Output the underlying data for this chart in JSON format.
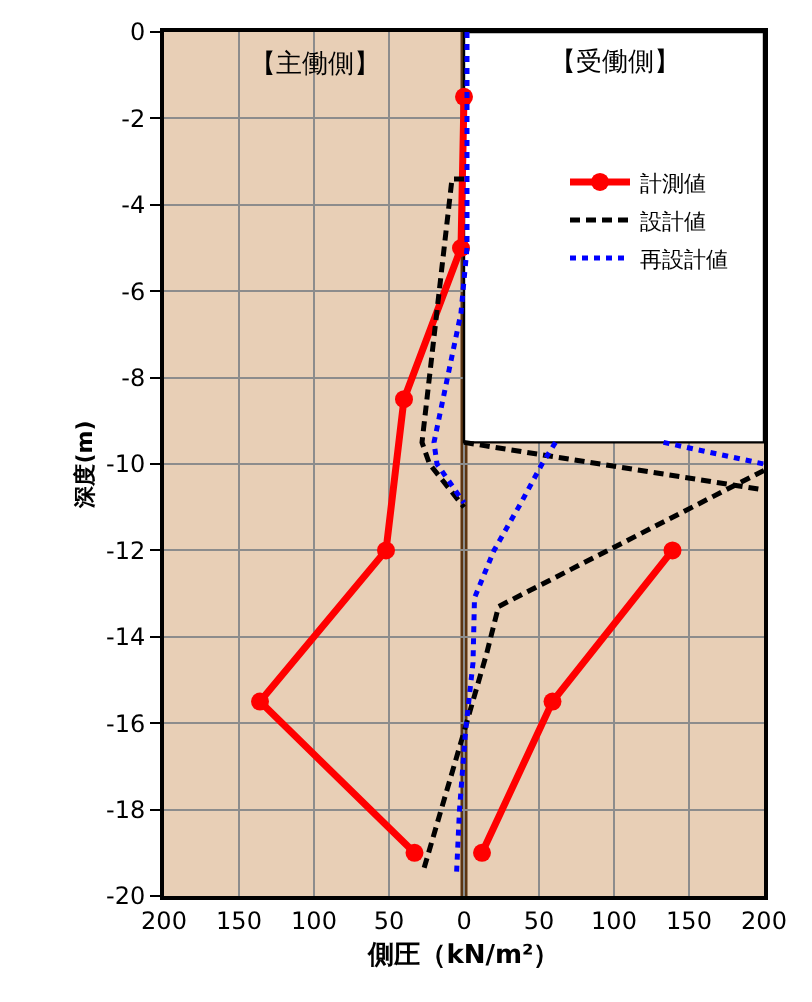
{
  "chart_data": {
    "type": "line",
    "xlabel": "側圧（kN/m²）",
    "ylabel": "深度(m)",
    "xlim": [
      -200,
      200
    ],
    "xticks": [
      {
        "value": -200,
        "label": "200"
      },
      {
        "value": -150,
        "label": "150"
      },
      {
        "value": -100,
        "label": "100"
      },
      {
        "value": -50,
        "label": "50"
      },
      0,
      50,
      100,
      150,
      200
    ],
    "ylim": [
      -20,
      0
    ],
    "yticks": [
      0,
      -2,
      -4,
      -6,
      -8,
      -10,
      -12,
      -14,
      -16,
      -18,
      -20
    ],
    "grid": true,
    "legend": "top right",
    "annotations": [
      "【主働側】",
      "【受働側】"
    ],
    "ref_lines": [
      {
        "axis": "x",
        "value": 0,
        "color": "#5c3512"
      }
    ],
    "bands": [
      {
        "axis": "y",
        "from": -9.5,
        "to": 0,
        "color": "#ffffff"
      }
    ],
    "series": [
      {
        "name": "計測値",
        "color": "#ff0000",
        "marker": "circle",
        "line_style": "solid",
        "x": [
          0,
          -2,
          -40,
          -52,
          -136,
          -33,
          null,
          12,
          59,
          139
        ],
        "values": [
          -1.5,
          -5,
          -8.5,
          -12,
          -15.5,
          -19,
          null,
          -19,
          -15.5,
          -12
        ]
      },
      {
        "name": "設計値",
        "color": "#000000",
        "marker": "none",
        "line_style": "dashed",
        "x": [
          0,
          -8,
          -28,
          -23,
          0,
          null,
          0,
          200,
          null,
          200,
          183,
          23,
          15,
          0,
          -27
        ],
        "values": [
          -3.4,
          -3.4,
          -9.5,
          -10,
          -11,
          null,
          -9.5,
          -10.6,
          null,
          -10.15,
          -10.45,
          -13.3,
          -14.4,
          -16.2,
          -19.4
        ]
      },
      {
        "name": "再設計値",
        "color": "#0000ff",
        "marker": "none",
        "line_style": "dotted",
        "x": [
          2,
          2,
          -2,
          -20,
          -18,
          0,
          null,
          61,
          52,
          38,
          20,
          7,
          6,
          1,
          -3,
          -5,
          null,
          133,
          200
        ],
        "values": [
          0,
          -5,
          -6.5,
          -9.5,
          -10,
          -10.9,
          null,
          -9.5,
          -10,
          -10.9,
          -12,
          -13.1,
          -14.6,
          -16.2,
          -18,
          -19.5,
          null,
          -9.5,
          -10
        ]
      }
    ]
  }
}
